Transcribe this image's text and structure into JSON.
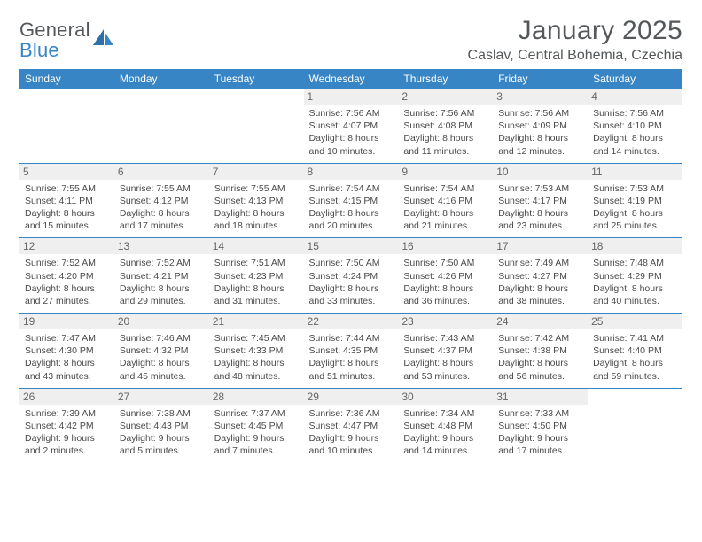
{
  "brand": {
    "line1": "General",
    "line2": "Blue"
  },
  "title": "January 2025",
  "location": "Caslav, Central Bohemia, Czechia",
  "colors": {
    "header_bg": "#3885c6",
    "header_text": "#ffffff",
    "daynum_bg": "#efefef",
    "daynum_text": "#666666",
    "body_text": "#4a4a4a",
    "title_text": "#54585a",
    "rule": "#3885c6"
  },
  "weekdays": [
    "Sunday",
    "Monday",
    "Tuesday",
    "Wednesday",
    "Thursday",
    "Friday",
    "Saturday"
  ],
  "weeks": [
    [
      null,
      null,
      null,
      {
        "n": "1",
        "sunrise": "7:56 AM",
        "sunset": "4:07 PM",
        "daylight": "8 hours and 10 minutes."
      },
      {
        "n": "2",
        "sunrise": "7:56 AM",
        "sunset": "4:08 PM",
        "daylight": "8 hours and 11 minutes."
      },
      {
        "n": "3",
        "sunrise": "7:56 AM",
        "sunset": "4:09 PM",
        "daylight": "8 hours and 12 minutes."
      },
      {
        "n": "4",
        "sunrise": "7:56 AM",
        "sunset": "4:10 PM",
        "daylight": "8 hours and 14 minutes."
      }
    ],
    [
      {
        "n": "5",
        "sunrise": "7:55 AM",
        "sunset": "4:11 PM",
        "daylight": "8 hours and 15 minutes."
      },
      {
        "n": "6",
        "sunrise": "7:55 AM",
        "sunset": "4:12 PM",
        "daylight": "8 hours and 17 minutes."
      },
      {
        "n": "7",
        "sunrise": "7:55 AM",
        "sunset": "4:13 PM",
        "daylight": "8 hours and 18 minutes."
      },
      {
        "n": "8",
        "sunrise": "7:54 AM",
        "sunset": "4:15 PM",
        "daylight": "8 hours and 20 minutes."
      },
      {
        "n": "9",
        "sunrise": "7:54 AM",
        "sunset": "4:16 PM",
        "daylight": "8 hours and 21 minutes."
      },
      {
        "n": "10",
        "sunrise": "7:53 AM",
        "sunset": "4:17 PM",
        "daylight": "8 hours and 23 minutes."
      },
      {
        "n": "11",
        "sunrise": "7:53 AM",
        "sunset": "4:19 PM",
        "daylight": "8 hours and 25 minutes."
      }
    ],
    [
      {
        "n": "12",
        "sunrise": "7:52 AM",
        "sunset": "4:20 PM",
        "daylight": "8 hours and 27 minutes."
      },
      {
        "n": "13",
        "sunrise": "7:52 AM",
        "sunset": "4:21 PM",
        "daylight": "8 hours and 29 minutes."
      },
      {
        "n": "14",
        "sunrise": "7:51 AM",
        "sunset": "4:23 PM",
        "daylight": "8 hours and 31 minutes."
      },
      {
        "n": "15",
        "sunrise": "7:50 AM",
        "sunset": "4:24 PM",
        "daylight": "8 hours and 33 minutes."
      },
      {
        "n": "16",
        "sunrise": "7:50 AM",
        "sunset": "4:26 PM",
        "daylight": "8 hours and 36 minutes."
      },
      {
        "n": "17",
        "sunrise": "7:49 AM",
        "sunset": "4:27 PM",
        "daylight": "8 hours and 38 minutes."
      },
      {
        "n": "18",
        "sunrise": "7:48 AM",
        "sunset": "4:29 PM",
        "daylight": "8 hours and 40 minutes."
      }
    ],
    [
      {
        "n": "19",
        "sunrise": "7:47 AM",
        "sunset": "4:30 PM",
        "daylight": "8 hours and 43 minutes."
      },
      {
        "n": "20",
        "sunrise": "7:46 AM",
        "sunset": "4:32 PM",
        "daylight": "8 hours and 45 minutes."
      },
      {
        "n": "21",
        "sunrise": "7:45 AM",
        "sunset": "4:33 PM",
        "daylight": "8 hours and 48 minutes."
      },
      {
        "n": "22",
        "sunrise": "7:44 AM",
        "sunset": "4:35 PM",
        "daylight": "8 hours and 51 minutes."
      },
      {
        "n": "23",
        "sunrise": "7:43 AM",
        "sunset": "4:37 PM",
        "daylight": "8 hours and 53 minutes."
      },
      {
        "n": "24",
        "sunrise": "7:42 AM",
        "sunset": "4:38 PM",
        "daylight": "8 hours and 56 minutes."
      },
      {
        "n": "25",
        "sunrise": "7:41 AM",
        "sunset": "4:40 PM",
        "daylight": "8 hours and 59 minutes."
      }
    ],
    [
      {
        "n": "26",
        "sunrise": "7:39 AM",
        "sunset": "4:42 PM",
        "daylight": "9 hours and 2 minutes."
      },
      {
        "n": "27",
        "sunrise": "7:38 AM",
        "sunset": "4:43 PM",
        "daylight": "9 hours and 5 minutes."
      },
      {
        "n": "28",
        "sunrise": "7:37 AM",
        "sunset": "4:45 PM",
        "daylight": "9 hours and 7 minutes."
      },
      {
        "n": "29",
        "sunrise": "7:36 AM",
        "sunset": "4:47 PM",
        "daylight": "9 hours and 10 minutes."
      },
      {
        "n": "30",
        "sunrise": "7:34 AM",
        "sunset": "4:48 PM",
        "daylight": "9 hours and 14 minutes."
      },
      {
        "n": "31",
        "sunrise": "7:33 AM",
        "sunset": "4:50 PM",
        "daylight": "9 hours and 17 minutes."
      },
      null
    ]
  ],
  "labels": {
    "sunrise": "Sunrise:",
    "sunset": "Sunset:",
    "daylight": "Daylight:"
  }
}
